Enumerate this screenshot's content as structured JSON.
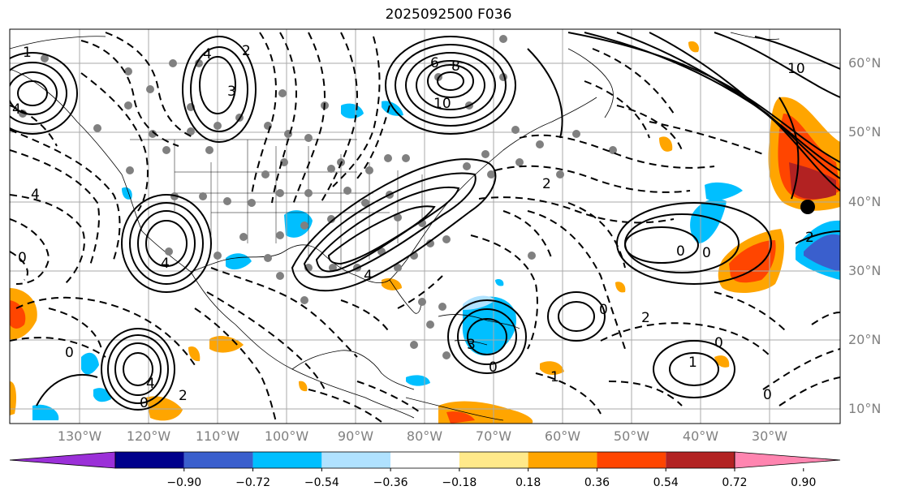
{
  "title": "2025092500 F036",
  "lat_labels": [
    "60°N",
    "50°N",
    "40°N",
    "30°N",
    "20°N",
    "10°N"
  ],
  "lon_labels": [
    "130°W",
    "120°W",
    "110°W",
    "100°W",
    "90°W",
    "80°W",
    "70°W",
    "60°W",
    "50°W",
    "40°W",
    "30°W"
  ],
  "colorbar": {
    "colors": [
      "#9b30d8",
      "#00008b",
      "#3a5fcd",
      "#00bfff",
      "#b0e2ff",
      "#ffffff",
      "#ffe98a",
      "#ffa500",
      "#ff4500",
      "#b22222",
      "#ff85b0"
    ],
    "ticks": [
      "−0.90",
      "−0.72",
      "−0.54",
      "−0.36",
      "−0.18",
      "0.18",
      "0.36",
      "0.54",
      "0.72",
      "0.90"
    ]
  },
  "contour_labels": [
    "1",
    "4",
    "4",
    "0",
    "4",
    "4",
    "3",
    "2",
    "6",
    "8",
    "10",
    "10",
    "4",
    "2",
    "0",
    "3",
    "4",
    "0",
    "2",
    "0",
    "2",
    "0",
    "0",
    "1",
    "1",
    "0",
    "2",
    "0",
    "0"
  ],
  "colors": {
    "grid": "#aaaaaa",
    "axis_label": "#808080",
    "positive": [
      "#ffa500",
      "#ff4500",
      "#b22222"
    ],
    "negative": [
      "#00bfff",
      "#3a5fcd"
    ]
  }
}
